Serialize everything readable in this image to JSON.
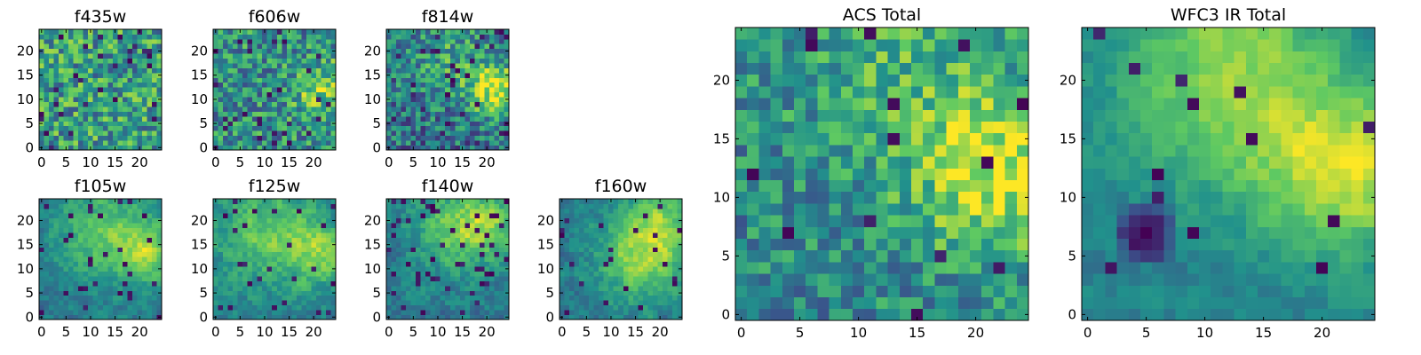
{
  "figure": {
    "colormap": "viridis",
    "colormap_stops": [
      "#440154",
      "#3b528b",
      "#21918c",
      "#5ec962",
      "#fde725"
    ]
  },
  "chart_data": [
    {
      "id": "f435w",
      "type": "heatmap",
      "title": "f435w",
      "grid_size": 25,
      "xlim": [
        0,
        24
      ],
      "ylim": [
        0,
        24
      ],
      "x_ticks": [
        "0",
        "5",
        "10",
        "15",
        "20"
      ],
      "y_ticks": [
        "0",
        "5",
        "10",
        "15",
        "20"
      ],
      "pattern": "noise",
      "seed": 11,
      "base": 0.56,
      "noise": 0.3,
      "dark_frac": 0.05,
      "blobs": []
    },
    {
      "id": "f606w",
      "type": "heatmap",
      "title": "f606w",
      "grid_size": 25,
      "xlim": [
        0,
        24
      ],
      "ylim": [
        0,
        24
      ],
      "x_ticks": [
        "0",
        "5",
        "10",
        "15",
        "20"
      ],
      "y_ticks": [
        "0",
        "5",
        "10",
        "15",
        "20"
      ],
      "pattern": "noise",
      "seed": 23,
      "base": 0.5,
      "noise": 0.28,
      "dark_frac": 0.04,
      "blobs": [
        {
          "x": 22,
          "y": 12,
          "r": 4,
          "a": 0.3
        }
      ]
    },
    {
      "id": "f814w",
      "type": "heatmap",
      "title": "f814w",
      "grid_size": 25,
      "xlim": [
        0,
        24
      ],
      "ylim": [
        0,
        24
      ],
      "x_ticks": [
        "0",
        "5",
        "10",
        "15",
        "20"
      ],
      "y_ticks": [
        "0",
        "5",
        "10",
        "15",
        "20"
      ],
      "pattern": "noise",
      "seed": 37,
      "base": 0.38,
      "noise": 0.26,
      "dark_frac": 0.05,
      "blobs": [
        {
          "x": 22,
          "y": 12,
          "r": 4,
          "a": 0.55
        },
        {
          "x": 12,
          "y": 19,
          "r": 6,
          "a": 0.22
        }
      ]
    },
    {
      "id": "f105w",
      "type": "heatmap",
      "title": "f105w",
      "grid_size": 25,
      "xlim": [
        0,
        24
      ],
      "ylim": [
        0,
        24
      ],
      "x_ticks": [
        "0",
        "5",
        "10",
        "15",
        "20"
      ],
      "y_ticks": [
        "0",
        "5",
        "10",
        "15",
        "20"
      ],
      "pattern": "smooth",
      "seed": 41,
      "base": 0.4,
      "noise": 0.18,
      "dark_frac": 0.06,
      "blobs": [
        {
          "x": 13,
          "y": 17,
          "r": 7,
          "a": 0.35
        },
        {
          "x": 22,
          "y": 13,
          "r": 4,
          "a": 0.35
        }
      ]
    },
    {
      "id": "f125w",
      "type": "heatmap",
      "title": "f125w",
      "grid_size": 25,
      "xlim": [
        0,
        24
      ],
      "ylim": [
        0,
        24
      ],
      "x_ticks": [
        "0",
        "5",
        "10",
        "15",
        "20"
      ],
      "y_ticks": [
        "0",
        "5",
        "10",
        "15",
        "20"
      ],
      "pattern": "smooth",
      "seed": 53,
      "base": 0.46,
      "noise": 0.2,
      "dark_frac": 0.05,
      "blobs": [
        {
          "x": 12,
          "y": 18,
          "r": 7,
          "a": 0.3
        },
        {
          "x": 22,
          "y": 13,
          "r": 4,
          "a": 0.35
        }
      ]
    },
    {
      "id": "f140w",
      "type": "heatmap",
      "title": "f140w",
      "grid_size": 25,
      "xlim": [
        0,
        24
      ],
      "ylim": [
        0,
        24
      ],
      "x_ticks": [
        "0",
        "5",
        "10",
        "15",
        "20"
      ],
      "y_ticks": [
        "0",
        "5",
        "10",
        "15",
        "20"
      ],
      "pattern": "smooth",
      "seed": 67,
      "base": 0.42,
      "noise": 0.2,
      "dark_frac": 0.06,
      "blobs": [
        {
          "x": 20,
          "y": 19,
          "r": 5,
          "a": 0.35
        },
        {
          "x": 12,
          "y": 18,
          "r": 6,
          "a": 0.25
        }
      ]
    },
    {
      "id": "f160w",
      "type": "heatmap",
      "title": "f160w",
      "grid_size": 25,
      "xlim": [
        0,
        24
      ],
      "ylim": [
        0,
        24
      ],
      "x_ticks": [
        "0",
        "5",
        "10",
        "15",
        "20"
      ],
      "y_ticks": [
        "0",
        "5",
        "10",
        "15",
        "20"
      ],
      "pattern": "smooth",
      "seed": 79,
      "base": 0.42,
      "noise": 0.18,
      "dark_frac": 0.05,
      "blobs": [
        {
          "x": 16,
          "y": 12,
          "r": 6,
          "a": 0.4
        },
        {
          "x": 20,
          "y": 20,
          "r": 5,
          "a": 0.3
        }
      ]
    },
    {
      "id": "acs_total",
      "type": "heatmap",
      "title": "ACS Total",
      "grid_size": 25,
      "xlim": [
        0,
        24
      ],
      "ylim": [
        0,
        24
      ],
      "x_ticks": [
        "0",
        "5",
        "10",
        "15",
        "20"
      ],
      "y_ticks": [
        "0",
        "5",
        "10",
        "15",
        "20"
      ],
      "pattern": "noise",
      "seed": 91,
      "base": 0.47,
      "noise": 0.22,
      "dark_frac": 0.03,
      "blobs": [
        {
          "x": 22,
          "y": 12,
          "r": 5,
          "a": 0.45
        },
        {
          "x": 13,
          "y": 20,
          "r": 6,
          "a": 0.18
        }
      ]
    },
    {
      "id": "wfc3_ir_total",
      "type": "heatmap",
      "title": "WFC3 IR Total",
      "grid_size": 25,
      "xlim": [
        0,
        24
      ],
      "ylim": [
        0,
        24
      ],
      "x_ticks": [
        "0",
        "5",
        "10",
        "15",
        "20"
      ],
      "y_ticks": [
        "0",
        "5",
        "10",
        "15",
        "20"
      ],
      "pattern": "smooth",
      "seed": 103,
      "base": 0.42,
      "noise": 0.14,
      "dark_frac": 0.03,
      "blobs": [
        {
          "x": 12,
          "y": 20,
          "r": 7,
          "a": 0.4
        },
        {
          "x": 22,
          "y": 12,
          "r": 5,
          "a": 0.45
        }
      ],
      "dark_cluster": {
        "x": 5,
        "y": 7,
        "r": 3
      }
    }
  ]
}
